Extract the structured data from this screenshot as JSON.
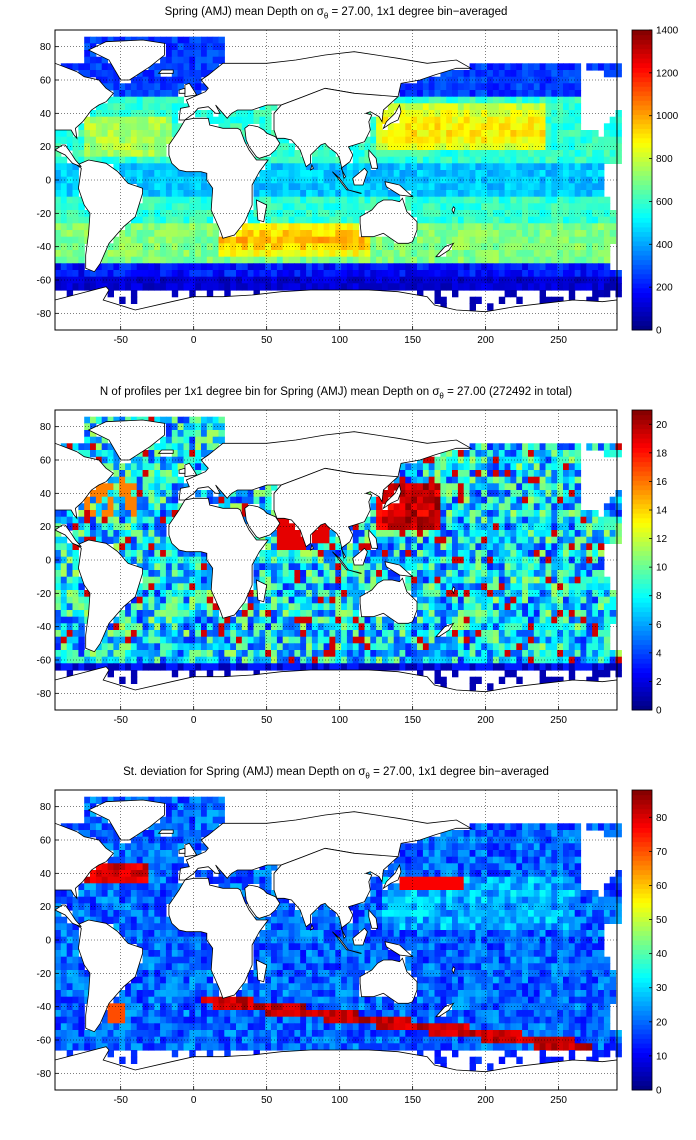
{
  "maps": [
    {
      "title_prefix": "Spring (AMJ) mean Depth on ",
      "title_symbol": "σ",
      "title_subscript": "θ",
      "title_suffix": " = 27.00, 1x1 degree bin−averaged",
      "colorbar": {
        "min": 0,
        "max": 1400,
        "ticks": [
          "0",
          "200",
          "400",
          "600",
          "800",
          "1000",
          "1200",
          "1400"
        ]
      }
    },
    {
      "title_prefix": "N of profiles per 1x1 degree bin for Spring (AMJ) mean Depth on ",
      "title_symbol": "σ",
      "title_subscript": "θ",
      "title_suffix": " = 27.00 (272492 in total)",
      "colorbar": {
        "min": 0,
        "max": 21,
        "ticks": [
          "0",
          "2",
          "4",
          "6",
          "8",
          "10",
          "12",
          "14",
          "16",
          "18",
          "20"
        ]
      }
    },
    {
      "title_prefix": "St. deviation for Spring (AMJ) mean Depth on ",
      "title_symbol": "σ",
      "title_subscript": "θ",
      "title_suffix": " = 27.00, 1x1 degree bin−averaged",
      "colorbar": {
        "min": 0,
        "max": 88,
        "ticks": [
          "0",
          "10",
          "20",
          "30",
          "40",
          "50",
          "60",
          "70",
          "80"
        ]
      }
    }
  ],
  "axes": {
    "x_ticks": [
      "-50",
      "0",
      "50",
      "100",
      "150",
      "200",
      "250"
    ],
    "y_ticks": [
      "80",
      "60",
      "40",
      "20",
      "0",
      "-20",
      "-40",
      "-60",
      "-80"
    ],
    "xlim": [
      -95,
      290
    ],
    "ylim": [
      -90,
      90
    ],
    "grid": "dotted"
  },
  "colormap": "jet"
}
